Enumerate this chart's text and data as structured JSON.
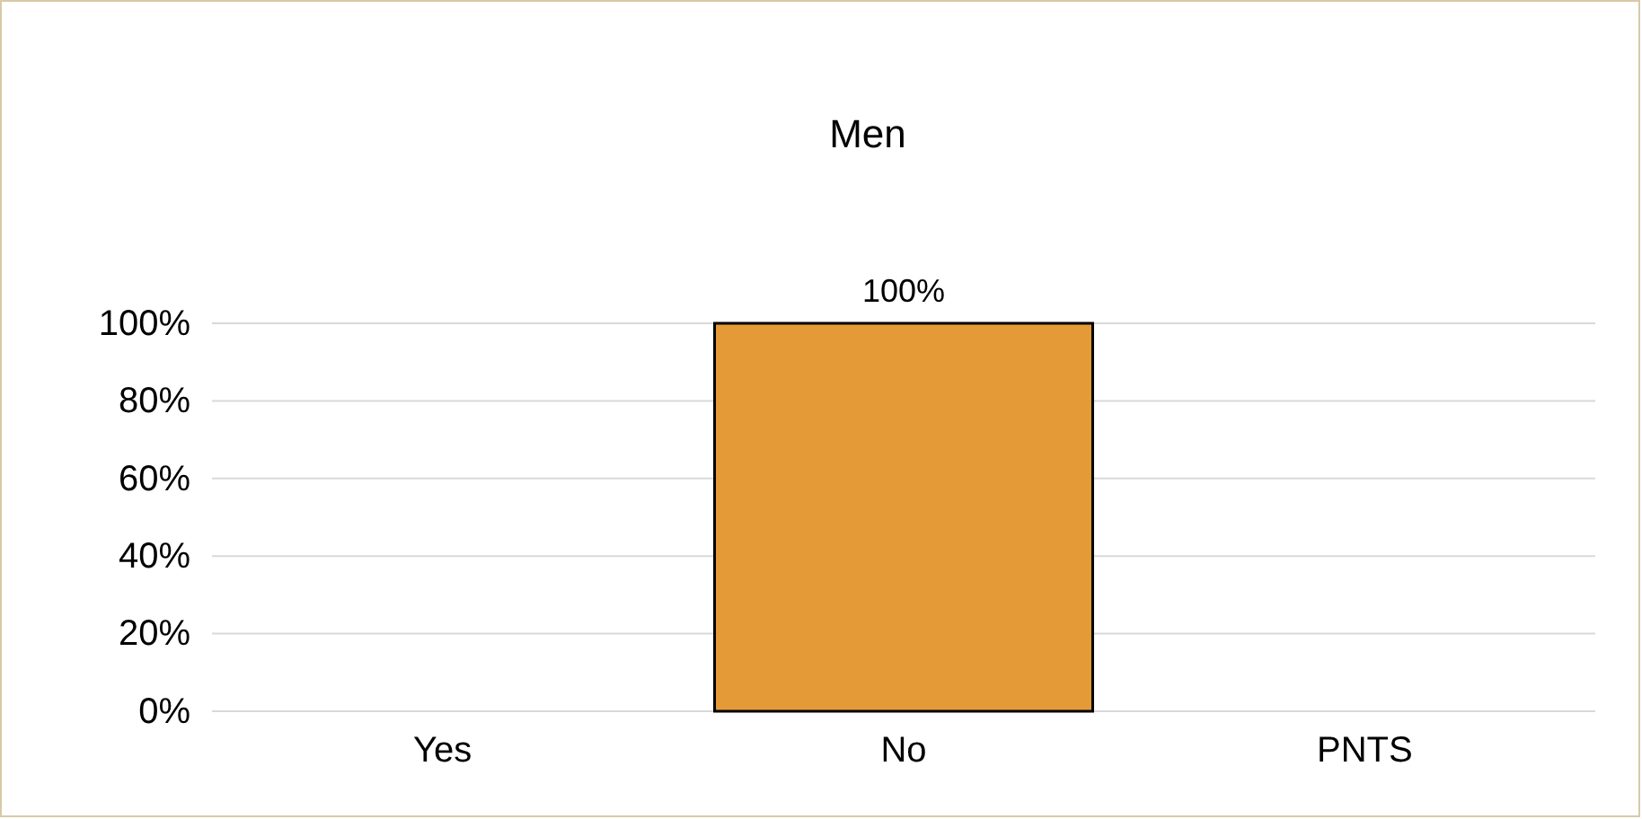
{
  "chart_data": {
    "type": "bar",
    "title": "Men",
    "categories": [
      "Yes",
      "No",
      "PNTS"
    ],
    "values": [
      0,
      100,
      0
    ],
    "value_labels": [
      null,
      "100%",
      null
    ],
    "color": "#e59a38",
    "ylim": [
      0,
      100
    ],
    "yticks": [
      {
        "value": 0,
        "label": "0%"
      },
      {
        "value": 20,
        "label": "20%"
      },
      {
        "value": 40,
        "label": "40%"
      },
      {
        "value": 60,
        "label": "60%"
      },
      {
        "value": 80,
        "label": "80%"
      },
      {
        "value": 100,
        "label": "100%"
      }
    ],
    "grid": "y"
  }
}
